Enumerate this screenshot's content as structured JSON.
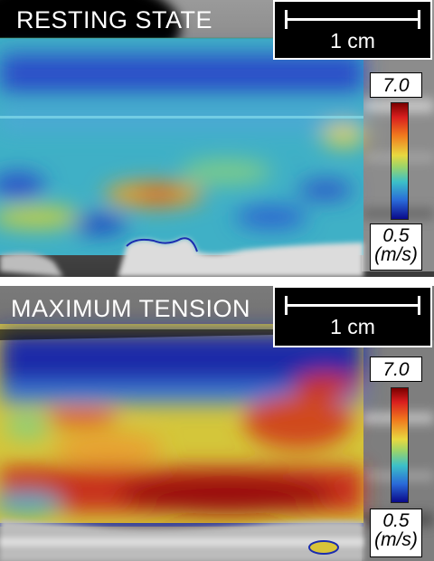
{
  "panels": [
    {
      "title": "RESTING STATE",
      "scale_bar_label": "1 cm",
      "colorbar": {
        "max_label": "7.0",
        "min_label": "0.5",
        "unit_label": "(m/s)"
      }
    },
    {
      "title": "MAXIMUM TENSION",
      "scale_bar_label": "1 cm",
      "colorbar": {
        "max_label": "7.0",
        "min_label": "0.5",
        "unit_label": "(m/s)"
      }
    }
  ],
  "colors": {
    "colormap": [
      "#0a0a8a",
      "#2a6ad8",
      "#3cc0c8",
      "#9bd46a",
      "#e8d840",
      "#f07a1e",
      "#d81e1e",
      "#7a0000"
    ],
    "label_text": "#ffffff",
    "label_background": "#000000"
  }
}
